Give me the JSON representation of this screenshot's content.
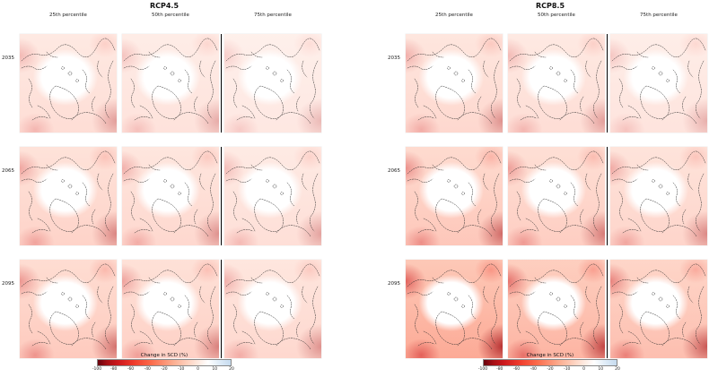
{
  "figure": {
    "panels": [
      {
        "id": "rcp45",
        "title": "RCP4.5",
        "columns": [
          "25th percentile",
          "50th percentile",
          "75th percentile"
        ],
        "rows": [
          {
            "year": "2035",
            "intensities": [
              0.4,
              0.34,
              0.28
            ]
          },
          {
            "year": "2065",
            "intensities": [
              0.52,
              0.46,
              0.38
            ]
          },
          {
            "year": "2095",
            "intensities": [
              0.62,
              0.55,
              0.46
            ]
          }
        ]
      },
      {
        "id": "rcp85",
        "title": "RCP8.5",
        "columns": [
          "25th percentile",
          "50th percentile",
          "75th percentile"
        ],
        "rows": [
          {
            "year": "2035",
            "intensities": [
              0.46,
              0.4,
              0.32
            ]
          },
          {
            "year": "2065",
            "intensities": [
              0.66,
              0.58,
              0.5
            ]
          },
          {
            "year": "2095",
            "intensities": [
              1.0,
              0.88,
              0.76
            ]
          }
        ]
      }
    ],
    "colorbar": {
      "label": "Change in SCD (%)",
      "ticks": [
        "-100",
        "-80",
        "-60",
        "-40",
        "-20",
        "-10",
        "0",
        "10",
        "20"
      ],
      "gradient": [
        "#67000d",
        "#a50f15",
        "#cb181d",
        "#ef3b2c",
        "#fb6a4a",
        "#fcae91",
        "#fee5d9",
        "#ffffff",
        "#deebf7",
        "#c6dbef"
      ]
    }
  },
  "chart_data": {
    "type": "heatmap",
    "title": "",
    "panels": [
      {
        "title": "RCP4.5",
        "columns": [
          "25th percentile",
          "50th percentile",
          "75th percentile"
        ],
        "rows": [
          "2035",
          "2065",
          "2095"
        ],
        "mean_change_in_scd_pct_estimate": [
          [
            -35,
            -30,
            -25
          ],
          [
            -45,
            -40,
            -33
          ],
          [
            -55,
            -48,
            -40
          ]
        ]
      },
      {
        "title": "RCP8.5",
        "columns": [
          "25th percentile",
          "50th percentile",
          "75th percentile"
        ],
        "rows": [
          "2035",
          "2065",
          "2095"
        ],
        "mean_change_in_scd_pct_estimate": [
          [
            -40,
            -35,
            -28
          ],
          [
            -58,
            -50,
            -43
          ],
          [
            -82,
            -72,
            -62
          ]
        ]
      }
    ],
    "colorbar": {
      "label": "Change in SCD (%)",
      "ticks": [
        -100,
        -80,
        -60,
        -40,
        -20,
        -10,
        0,
        10,
        20
      ],
      "range": [
        -100,
        20
      ],
      "colormap": "red-white-blue diverging"
    },
    "layout_hints": {
      "grid": "2 panels x (3 columns x 3 rows of Arctic polar maps)",
      "colorbar_position": "bottom-center of each panel",
      "separator": "vertical black line left of third column"
    }
  }
}
